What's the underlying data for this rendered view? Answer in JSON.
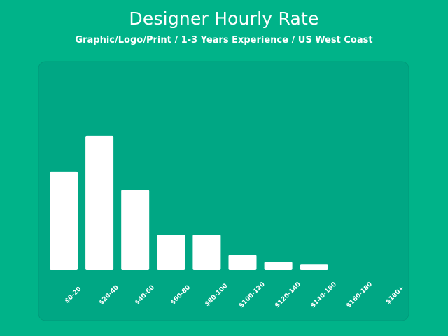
{
  "header": {
    "title": "Designer Hourly Rate",
    "subtitle": "Graphic/Logo/Print / 1-3 Years Experience / US West Coast"
  },
  "colors": {
    "background": "#00b389",
    "panel": "#00a784",
    "bar": "#ffffff"
  },
  "chart_data": {
    "type": "bar",
    "title": "Designer Hourly Rate",
    "subtitle": "Graphic/Logo/Print / 1-3 Years Experience / US West Coast",
    "categories": [
      "$0-20",
      "$20-40",
      "$40-60",
      "$60-80",
      "$80-100",
      "$100-120",
      "$120-140",
      "$140-160",
      "$160-180",
      "$180+"
    ],
    "values": [
      144,
      196,
      117,
      52,
      52,
      22,
      12,
      9,
      0,
      0
    ],
    "xlabel": "",
    "ylabel": "",
    "ylim": [
      0,
      200
    ],
    "grid": false,
    "legend": "none"
  }
}
